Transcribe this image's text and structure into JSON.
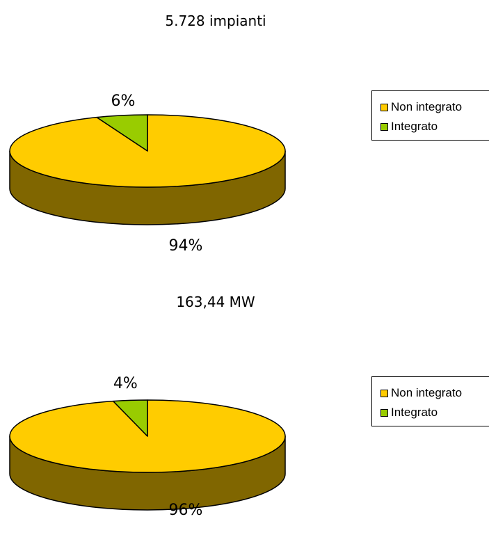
{
  "chart_data": [
    {
      "type": "pie",
      "title": "5.728 impianti",
      "categories": [
        "Non integrato",
        "Integrato"
      ],
      "values": [
        94,
        6
      ],
      "labels": [
        "94%",
        "6%"
      ],
      "colors": [
        "#FFCC00",
        "#99CC00"
      ],
      "legend": "right"
    },
    {
      "type": "pie",
      "title": "163,44 MW",
      "categories": [
        "Non integrato",
        "Integrato"
      ],
      "values": [
        96,
        4
      ],
      "labels": [
        "96%",
        "4%"
      ],
      "colors": [
        "#FFCC00",
        "#99CC00"
      ],
      "legend": "right"
    }
  ],
  "side_color": "#806600"
}
